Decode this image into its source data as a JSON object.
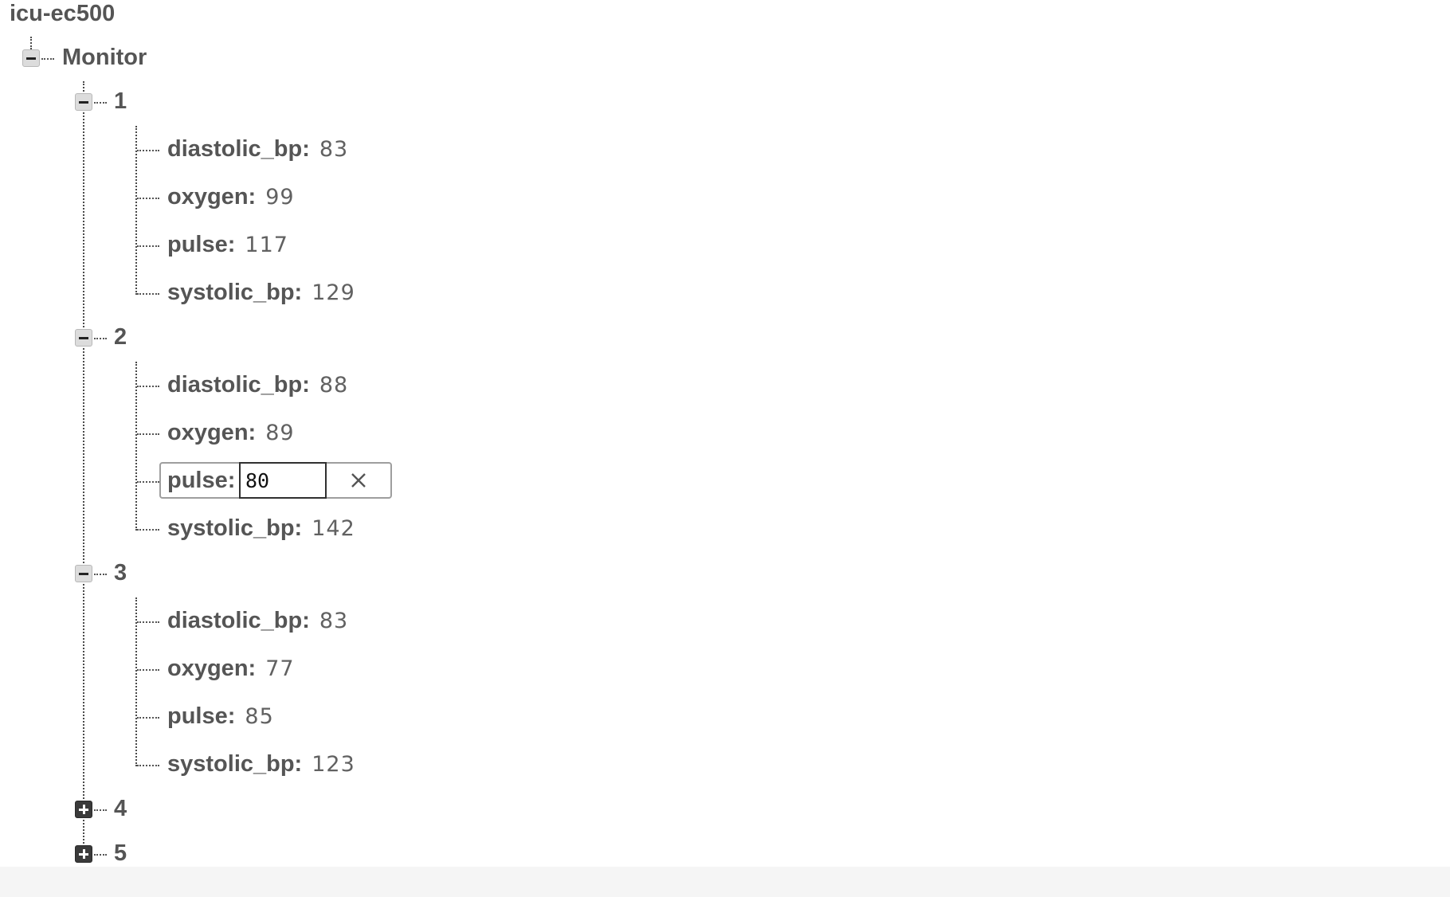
{
  "root": {
    "label": "icu-ec500"
  },
  "monitor": {
    "label": "Monitor",
    "nodes": [
      {
        "id": "1",
        "expanded": true,
        "fields": [
          {
            "key": "diastolic_bp:",
            "value": "83"
          },
          {
            "key": "oxygen:",
            "value": "99"
          },
          {
            "key": "pulse:",
            "value": "117"
          },
          {
            "key": "systolic_bp:",
            "value": "129"
          }
        ]
      },
      {
        "id": "2",
        "expanded": true,
        "fields": [
          {
            "key": "diastolic_bp:",
            "value": "88"
          },
          {
            "key": "oxygen:",
            "value": "89"
          },
          {
            "key": "pulse:",
            "value": "80",
            "editing": true
          },
          {
            "key": "systolic_bp:",
            "value": "142"
          }
        ]
      },
      {
        "id": "3",
        "expanded": true,
        "fields": [
          {
            "key": "diastolic_bp:",
            "value": "83"
          },
          {
            "key": "oxygen:",
            "value": "77"
          },
          {
            "key": "pulse:",
            "value": "85"
          },
          {
            "key": "systolic_bp:",
            "value": "123"
          }
        ]
      },
      {
        "id": "4",
        "expanded": false
      },
      {
        "id": "5",
        "expanded": false
      }
    ]
  },
  "icons": {
    "collapse": "minus-box-icon",
    "expand": "plus-box-icon",
    "cancel_edit": "close-icon"
  }
}
